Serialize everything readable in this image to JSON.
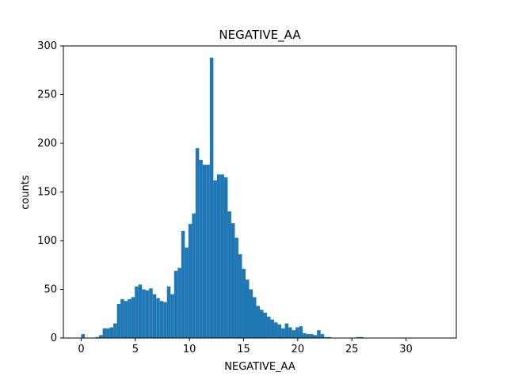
{
  "chart_data": {
    "type": "bar",
    "title": "NEGATIVE_AA",
    "xlabel": "NEGATIVE_AA",
    "ylabel": "counts",
    "xlim": [
      -1.65,
      34.65
    ],
    "ylim": [
      0,
      300
    ],
    "xticks": [
      "0",
      "5",
      "10",
      "15",
      "20",
      "25",
      "30"
    ],
    "yticks": [
      "0",
      "50",
      "100",
      "150",
      "200",
      "250",
      "300"
    ],
    "bar_color": "#1f77b4",
    "grid": false,
    "bin_width": 0.33,
    "bin_start": 0.0,
    "values": [
      4,
      0,
      0,
      0,
      1,
      3,
      10,
      10,
      11,
      15,
      35,
      40,
      38,
      40,
      42,
      53,
      55,
      50,
      49,
      51,
      45,
      41,
      38,
      37,
      53,
      45,
      69,
      72,
      110,
      93,
      117,
      128,
      195,
      183,
      178,
      178,
      288,
      162,
      168,
      168,
      165,
      130,
      118,
      103,
      86,
      71,
      60,
      50,
      42,
      33,
      29,
      26,
      22,
      19,
      16,
      14,
      10,
      15,
      11,
      8,
      11,
      12,
      5,
      4,
      4,
      3,
      8,
      4,
      1,
      1,
      0,
      0,
      0,
      0,
      0,
      0,
      0,
      1,
      1,
      0,
      0,
      0,
      0,
      0,
      0,
      0,
      0,
      0,
      0,
      0,
      0,
      0,
      0,
      0,
      0,
      0,
      0,
      0,
      0,
      0,
      0
    ]
  }
}
